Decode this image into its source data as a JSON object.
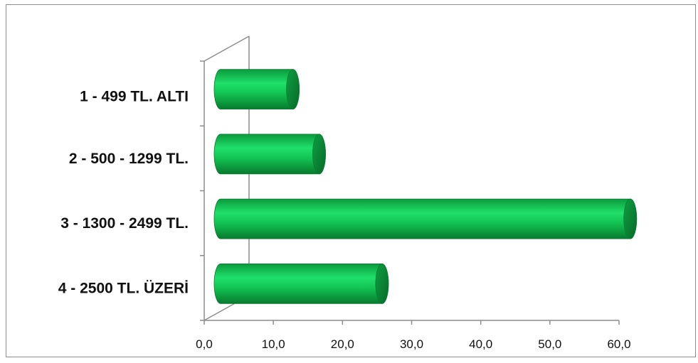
{
  "chart_data": {
    "type": "bar",
    "orientation": "horizontal",
    "style": "3d-cylinder",
    "categories": [
      "1 - 499 TL. ALTI",
      "2 - 500 - 1299 TL.",
      "3 - 1300 - 2499 TL.",
      "4 - 2500 TL. ÜZERİ"
    ],
    "values": [
      12.0,
      15.8,
      60.8,
      24.9
    ],
    "xlim": [
      0,
      60
    ],
    "x_ticks": [
      "0,0",
      "10,0",
      "20,0",
      "30,0",
      "40,0",
      "50,0",
      "60,0"
    ],
    "title": "",
    "xlabel": "",
    "ylabel": "",
    "grid": false,
    "legend": "none",
    "bar_color": "#11b84a",
    "bar_highlight": "#1fe06a",
    "bar_shadow": "#087a30",
    "axis_color": "#8c8c8c"
  }
}
